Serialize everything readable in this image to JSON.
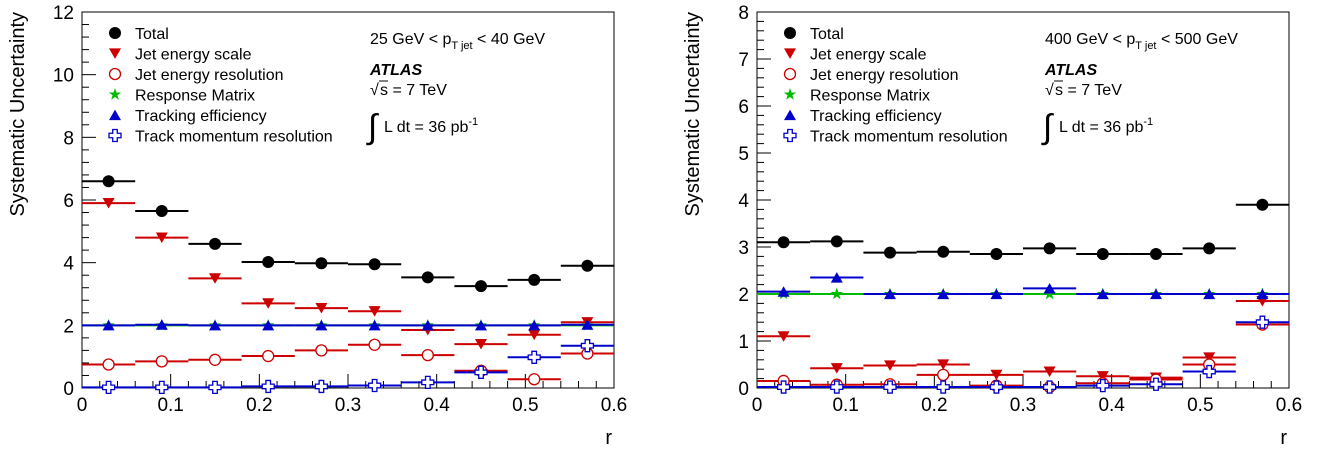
{
  "chart_data": [
    {
      "type": "scatter",
      "ylabel": "Systematic Uncertainty",
      "xlabel": "r",
      "xlim": [
        0,
        0.6
      ],
      "ylim": [
        0,
        12
      ],
      "xticks": [
        "0",
        "0.1",
        "0.2",
        "0.3",
        "0.4",
        "0.5",
        "0.6"
      ],
      "yticks": [
        "0",
        "2",
        "4",
        "6",
        "8",
        "10",
        "12"
      ],
      "annotations": {
        "range_prefix": "25 GeV < p",
        "range_sub": "T jet",
        "range_suffix": " < 40 GeV",
        "experiment": "ATLAS",
        "energy_root": "√",
        "energy": "s = 7 TeV",
        "lumi_integral": "∫",
        "lumi": "L dt = 36 pb",
        "lumi_sup": "-1"
      },
      "bins": [
        0.03,
        0.09,
        0.15,
        0.21,
        0.27,
        0.33,
        0.39,
        0.45,
        0.51,
        0.57
      ],
      "bin_half_width": 0.03,
      "series": [
        {
          "name": "Total",
          "marker": "circle-filled",
          "color": "#000000",
          "values": [
            6.6,
            5.65,
            4.6,
            4.02,
            3.98,
            3.95,
            3.53,
            3.25,
            3.45,
            3.9
          ]
        },
        {
          "name": "Jet energy scale",
          "marker": "triangle-down",
          "color": "#cc0000",
          "values": [
            5.9,
            4.8,
            3.5,
            2.7,
            2.55,
            2.45,
            1.85,
            1.4,
            1.7,
            2.1
          ]
        },
        {
          "name": "Jet energy resolution",
          "marker": "circle-open",
          "color": "#cc0000",
          "values": [
            0.75,
            0.85,
            0.9,
            1.02,
            1.2,
            1.38,
            1.05,
            0.55,
            0.28,
            1.1
          ]
        },
        {
          "name": "Response Matrix",
          "marker": "star",
          "color": "#00bb00",
          "values": [
            2.0,
            2.0,
            2.0,
            2.0,
            2.0,
            2.0,
            2.0,
            2.0,
            2.0,
            2.0
          ]
        },
        {
          "name": "Tracking efficiency",
          "marker": "triangle-up",
          "color": "#0000cc",
          "values": [
            2.0,
            2.02,
            2.0,
            2.0,
            2.0,
            2.0,
            2.0,
            2.0,
            2.0,
            2.02
          ]
        },
        {
          "name": "Track momentum resolution",
          "marker": "cross-open",
          "color": "#0000cc",
          "values": [
            0.02,
            0.02,
            0.02,
            0.05,
            0.05,
            0.08,
            0.18,
            0.5,
            0.98,
            1.35
          ]
        }
      ]
    },
    {
      "type": "scatter",
      "ylabel": "Systematic Uncertainty",
      "xlabel": "r",
      "xlim": [
        0,
        0.6
      ],
      "ylim": [
        0,
        8
      ],
      "xticks": [
        "0",
        "0.1",
        "0.2",
        "0.3",
        "0.4",
        "0.5",
        "0.6"
      ],
      "yticks": [
        "0",
        "1",
        "2",
        "3",
        "4",
        "5",
        "6",
        "7",
        "8"
      ],
      "annotations": {
        "range_prefix": "400 GeV < p",
        "range_sub": "T jet",
        "range_suffix": " < 500 GeV",
        "experiment": "ATLAS",
        "energy_root": "√",
        "energy": "s = 7 TeV",
        "lumi_integral": "∫",
        "lumi": "L dt = 36 pb",
        "lumi_sup": "-1"
      },
      "bins": [
        0.03,
        0.09,
        0.15,
        0.21,
        0.27,
        0.33,
        0.39,
        0.45,
        0.51,
        0.57
      ],
      "bin_half_width": 0.03,
      "series": [
        {
          "name": "Total",
          "marker": "circle-filled",
          "color": "#000000",
          "values": [
            3.1,
            3.12,
            2.88,
            2.9,
            2.85,
            2.97,
            2.85,
            2.85,
            2.97,
            3.9
          ]
        },
        {
          "name": "Jet energy scale",
          "marker": "triangle-down",
          "color": "#cc0000",
          "values": [
            1.1,
            0.42,
            0.48,
            0.5,
            0.28,
            0.35,
            0.25,
            0.22,
            0.65,
            1.85
          ]
        },
        {
          "name": "Jet energy resolution",
          "marker": "circle-open",
          "color": "#cc0000",
          "values": [
            0.15,
            0.07,
            0.08,
            0.28,
            0.05,
            0.02,
            0.1,
            0.18,
            0.5,
            1.35
          ]
        },
        {
          "name": "Response Matrix",
          "marker": "star",
          "color": "#00bb00",
          "values": [
            2.0,
            2.0,
            2.0,
            2.0,
            2.0,
            2.0,
            2.0,
            2.0,
            2.0,
            2.0
          ]
        },
        {
          "name": "Tracking efficiency",
          "marker": "triangle-up",
          "color": "#0000cc",
          "values": [
            2.05,
            2.35,
            2.0,
            2.0,
            2.0,
            2.12,
            2.0,
            2.0,
            2.0,
            2.0
          ]
        },
        {
          "name": "Track momentum resolution",
          "marker": "cross-open",
          "color": "#0000cc",
          "values": [
            0.02,
            0.02,
            0.02,
            0.02,
            0.02,
            0.02,
            0.05,
            0.08,
            0.35,
            1.4
          ]
        }
      ]
    }
  ]
}
